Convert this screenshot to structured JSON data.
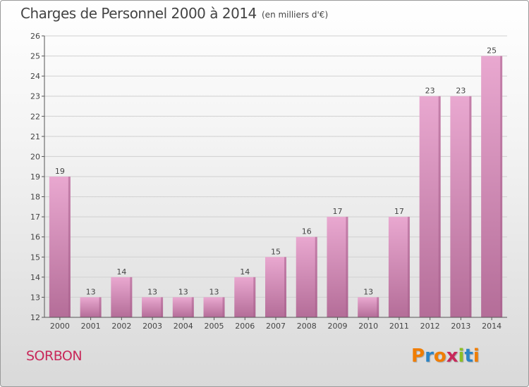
{
  "header": {
    "title": "Charges de Personnel 2000 à 2014",
    "subtitle": "(en milliers d'€)"
  },
  "footer": {
    "commune": "SORBON",
    "logo": {
      "text": "Proxiti",
      "letter_colors": [
        "#f07d00",
        "#2b84c6",
        "#f07d00",
        "#c8285a",
        "#8cbf26",
        "#2b84c6",
        "#f07d00"
      ]
    }
  },
  "colors": {
    "bar_top": "#e9a8d0",
    "bar_bottom": "#b46d98",
    "bar_side": "#a65f8a",
    "grid": "#d0d0d0",
    "axis": "#555555"
  },
  "chart_data": {
    "type": "bar",
    "categories": [
      "2000",
      "2001",
      "2002",
      "2003",
      "2004",
      "2005",
      "2006",
      "2007",
      "2008",
      "2009",
      "2010",
      "2011",
      "2012",
      "2013",
      "2014"
    ],
    "values": [
      19,
      13,
      14,
      13,
      13,
      13,
      14,
      15,
      16,
      17,
      13,
      17,
      23,
      23,
      25
    ],
    "title": "Charges de Personnel 2000 à 2014",
    "subtitle": "(en milliers d'€)",
    "ylim": [
      12,
      26
    ],
    "yticks": [
      12,
      13,
      14,
      15,
      16,
      17,
      18,
      19,
      20,
      21,
      22,
      23,
      24,
      25,
      26
    ],
    "grid": true,
    "legend": "none"
  }
}
